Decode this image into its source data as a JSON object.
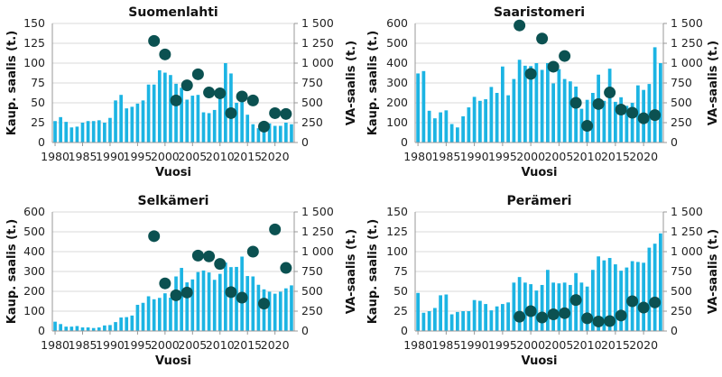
{
  "colors": {
    "bars": "#1cb4e3",
    "dots": "#0b5151",
    "grid": "#d9d9d9"
  },
  "chart_data": [
    {
      "type": "bar+scatter",
      "title": "Suomenlahti",
      "xlabel": "Vuosi",
      "ylabel": "Kaup. saalis (t.)",
      "y2label": "VA-saalis (t.)",
      "xticks": [
        "1980",
        "1985",
        "1990",
        "1995",
        "2000",
        "2005",
        "2010",
        "2015",
        "2020"
      ],
      "ylim": [
        0,
        150
      ],
      "yticks": [
        "0",
        "25",
        "50",
        "75",
        "100",
        "125",
        "150"
      ],
      "y2lim": [
        0,
        1500
      ],
      "y2ticks": [
        "0",
        "250",
        "500",
        "750",
        "1 000",
        "1 250",
        "1 500"
      ],
      "grid": true,
      "bar_years": [
        1980,
        1981,
        1982,
        1983,
        1984,
        1985,
        1986,
        1987,
        1988,
        1989,
        1990,
        1991,
        1992,
        1993,
        1994,
        1995,
        1996,
        1997,
        1998,
        1999,
        2000,
        2001,
        2002,
        2003,
        2004,
        2005,
        2006,
        2007,
        2008,
        2009,
        2010,
        2011,
        2012,
        2013,
        2014,
        2015,
        2016,
        2017,
        2018,
        2019,
        2020,
        2021,
        2022,
        2023
      ],
      "bar_values": [
        27,
        32,
        26,
        19,
        20,
        25,
        27,
        27,
        28,
        25,
        31,
        53,
        60,
        43,
        45,
        49,
        53,
        73,
        73,
        91,
        88,
        85,
        74,
        69,
        54,
        59,
        60,
        38,
        37,
        41,
        59,
        100,
        87,
        50,
        55,
        35,
        23,
        18,
        22,
        24,
        21,
        21,
        25,
        23
      ],
      "dot_years": [
        1998,
        2000,
        2002,
        2004,
        2006,
        2008,
        2010,
        2012,
        2014,
        2016,
        2018,
        2020,
        2022
      ],
      "dot_values": [
        1280,
        1110,
        530,
        720,
        860,
        630,
        620,
        370,
        580,
        530,
        200,
        370,
        360
      ]
    },
    {
      "type": "bar+scatter",
      "title": "Saaristomeri",
      "xlabel": "Vuosi",
      "ylabel": "Kaup. saalis (t.)",
      "y2label": "VA-saalis (t.)",
      "xticks": [
        "1980",
        "1985",
        "1990",
        "1995",
        "2000",
        "2005",
        "2010",
        "2015",
        "2020"
      ],
      "ylim": [
        0,
        600
      ],
      "yticks": [
        "0",
        "100",
        "200",
        "300",
        "400",
        "500",
        "600"
      ],
      "y2lim": [
        0,
        1500
      ],
      "y2ticks": [
        "0",
        "250",
        "500",
        "750",
        "1 000",
        "1 250",
        "1 500"
      ],
      "grid": true,
      "bar_years": [
        1980,
        1981,
        1982,
        1983,
        1984,
        1985,
        1986,
        1987,
        1988,
        1989,
        1990,
        1991,
        1992,
        1993,
        1994,
        1995,
        1996,
        1997,
        1998,
        1999,
        2000,
        2001,
        2002,
        2003,
        2004,
        2005,
        2006,
        2007,
        2008,
        2009,
        2010,
        2011,
        2012,
        2013,
        2014,
        2015,
        2016,
        2017,
        2018,
        2019,
        2020,
        2021,
        2022,
        2023
      ],
      "bar_values": [
        348,
        360,
        160,
        122,
        152,
        162,
        93,
        76,
        132,
        177,
        230,
        210,
        218,
        280,
        250,
        383,
        238,
        320,
        417,
        387,
        385,
        400,
        366,
        400,
        298,
        370,
        320,
        308,
        282,
        170,
        215,
        250,
        342,
        210,
        372,
        205,
        228,
        185,
        200,
        288,
        265,
        295,
        480,
        400
      ],
      "dot_years": [
        1998,
        2000,
        2002,
        2004,
        2006,
        2008,
        2010,
        2012,
        2014,
        2016,
        2018,
        2020,
        2022
      ],
      "dot_values": [
        1475,
        865,
        1310,
        955,
        1090,
        500,
        210,
        485,
        630,
        415,
        375,
        305,
        345
      ]
    },
    {
      "type": "bar+scatter",
      "title": "Selkämeri",
      "xlabel": "Vuosi",
      "ylabel": "Kaup. saalis (t.)",
      "y2label": "VA-saalis (t.)",
      "xticks": [
        "1980",
        "1985",
        "1990",
        "1995",
        "2000",
        "2005",
        "2010",
        "2015",
        "2020"
      ],
      "ylim": [
        0,
        600
      ],
      "yticks": [
        "0",
        "100",
        "200",
        "300",
        "400",
        "500",
        "600"
      ],
      "y2lim": [
        0,
        1500
      ],
      "y2ticks": [
        "0",
        "250",
        "500",
        "750",
        "1 000",
        "1 250",
        "1 500"
      ],
      "grid": true,
      "bar_years": [
        1980,
        1981,
        1982,
        1983,
        1984,
        1985,
        1986,
        1987,
        1988,
        1989,
        1990,
        1991,
        1992,
        1993,
        1994,
        1995,
        1996,
        1997,
        1998,
        1999,
        2000,
        2001,
        2002,
        2003,
        2004,
        2005,
        2006,
        2007,
        2008,
        2009,
        2010,
        2011,
        2012,
        2013,
        2014,
        2015,
        2016,
        2017,
        2018,
        2019,
        2020,
        2021,
        2022,
        2023
      ],
      "bar_values": [
        47,
        35,
        22,
        22,
        25,
        18,
        18,
        15,
        18,
        28,
        30,
        45,
        68,
        70,
        78,
        132,
        142,
        175,
        160,
        167,
        190,
        168,
        275,
        318,
        245,
        260,
        297,
        305,
        295,
        258,
        288,
        345,
        322,
        323,
        375,
        277,
        275,
        233,
        210,
        198,
        188,
        198,
        215,
        230
      ],
      "dot_years": [
        1998,
        2000,
        2002,
        2004,
        2006,
        2008,
        2010,
        2012,
        2014,
        2016,
        2018,
        2020,
        2022
      ],
      "dot_values": [
        1195,
        600,
        450,
        485,
        950,
        940,
        845,
        490,
        420,
        1000,
        345,
        1280,
        795
      ]
    },
    {
      "type": "bar+scatter",
      "title": "Perämeri",
      "xlabel": "Vuosi",
      "ylabel": "Kaup. saalis (t.)",
      "y2label": "VA-saalis (t.)",
      "xticks": [
        "1980",
        "1985",
        "1990",
        "1995",
        "2000",
        "2005",
        "2010",
        "2015",
        "2020"
      ],
      "ylim": [
        0,
        150
      ],
      "yticks": [
        "0",
        "25",
        "50",
        "75",
        "100",
        "125",
        "150"
      ],
      "y2lim": [
        0,
        1500
      ],
      "y2ticks": [
        "0",
        "250",
        "500",
        "750",
        "1 000",
        "1 250",
        "1 500"
      ],
      "grid": true,
      "bar_years": [
        1980,
        1981,
        1982,
        1983,
        1984,
        1985,
        1986,
        1987,
        1988,
        1989,
        1990,
        1991,
        1992,
        1993,
        1994,
        1995,
        1996,
        1997,
        1998,
        1999,
        2000,
        2001,
        2002,
        2003,
        2004,
        2005,
        2006,
        2007,
        2008,
        2009,
        2010,
        2011,
        2012,
        2013,
        2014,
        2015,
        2016,
        2017,
        2018,
        2019,
        2020,
        2021,
        2022,
        2023
      ],
      "bar_values": [
        48,
        23,
        25,
        29,
        45,
        46,
        21,
        24,
        25,
        25,
        39,
        38,
        34,
        26,
        31,
        34,
        36,
        61,
        68,
        61,
        59,
        51,
        58,
        77,
        61,
        60,
        61,
        58,
        73,
        61,
        56,
        77,
        94,
        89,
        92,
        84,
        76,
        80,
        88,
        87,
        86,
        105,
        110,
        123
      ],
      "dot_years": [
        1998,
        2000,
        2002,
        2004,
        2006,
        2008,
        2010,
        2012,
        2014,
        2016,
        2018,
        2020,
        2022
      ],
      "dot_values": [
        180,
        250,
        170,
        210,
        225,
        390,
        160,
        120,
        125,
        195,
        375,
        295,
        360
      ]
    }
  ]
}
